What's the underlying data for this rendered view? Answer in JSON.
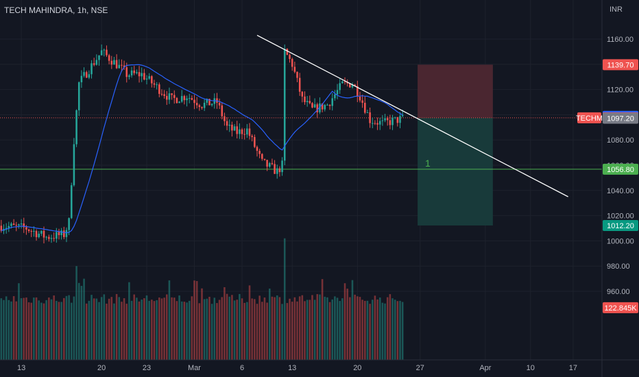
{
  "header": {
    "title": "TECH MAHINDRA, 1h, NSE",
    "currency": "INR"
  },
  "colors": {
    "background": "#131722",
    "grid": "#1e222d",
    "up": "#26a69a",
    "down": "#ef5350",
    "ma": "#2962ff",
    "support": "#4caf50",
    "trendline": "#ffffff",
    "stop_zone": "#4a2630",
    "target_zone": "#183a3a"
  },
  "chart_data": {
    "type": "candlestick",
    "symbol_tag": "TECHM",
    "ylim": [
      945,
      1168
    ],
    "y_ticks": [
      "1160.00",
      "1140.00",
      "1120.00",
      "1100.00",
      "1080.00",
      "1060.00",
      "1040.00",
      "1020.00",
      "1000.00",
      "980.00",
      "960.00"
    ],
    "x_ticks": [
      "13",
      "20",
      "23",
      "Mar",
      "6",
      "13",
      "20",
      "27",
      "Apr",
      "10",
      "17"
    ],
    "x_tick_bars": [
      8,
      40,
      58,
      77,
      96,
      116,
      142,
      167,
      193,
      211,
      228
    ],
    "bars_visible": 240,
    "price_line": {
      "value": 1097.55,
      "label": "1097.55",
      "tag": "TECHM"
    },
    "ma_label": {
      "value": 1098.7,
      "label": "1098.70"
    },
    "close_label": {
      "value": 1097.2,
      "label": "1097.20"
    },
    "support": {
      "value": 1056.8,
      "label": "1056.80",
      "annotation": "1"
    },
    "stop_loss": {
      "value": 1139.7,
      "label": "1139.70"
    },
    "target": {
      "value": 1012.2,
      "label": "1012.20"
    },
    "position": {
      "from_bar": 166,
      "to_bar": 196
    },
    "trendline": {
      "start": {
        "bar": 102,
        "value": 1163
      },
      "end": {
        "bar": 226,
        "value": 1035
      }
    },
    "volume_label": "122.845K",
    "price_anchors": [
      [
        0,
        1012
      ],
      [
        10,
        1010
      ],
      [
        18,
        1003
      ],
      [
        25,
        1005
      ],
      [
        27,
        1015
      ],
      [
        29,
        1080
      ],
      [
        31,
        1125
      ],
      [
        40,
        1150
      ],
      [
        46,
        1140
      ],
      [
        50,
        1132
      ],
      [
        56,
        1132
      ],
      [
        62,
        1122
      ],
      [
        68,
        1112
      ],
      [
        74,
        1115
      ],
      [
        80,
        1108
      ],
      [
        86,
        1110
      ],
      [
        90,
        1090
      ],
      [
        94,
        1086
      ],
      [
        98,
        1088
      ],
      [
        104,
        1062
      ],
      [
        110,
        1055
      ],
      [
        112,
        1060
      ],
      [
        113,
        1150
      ],
      [
        116,
        1140
      ],
      [
        120,
        1112
      ],
      [
        124,
        1104
      ],
      [
        130,
        1108
      ],
      [
        136,
        1124
      ],
      [
        140,
        1125
      ],
      [
        143,
        1115
      ],
      [
        147,
        1096
      ],
      [
        152,
        1093
      ],
      [
        158,
        1096
      ],
      [
        160,
        1097
      ]
    ],
    "volume_spikes": [
      [
        30,
        980
      ],
      [
        33,
        970
      ],
      [
        113,
        1002
      ]
    ]
  }
}
